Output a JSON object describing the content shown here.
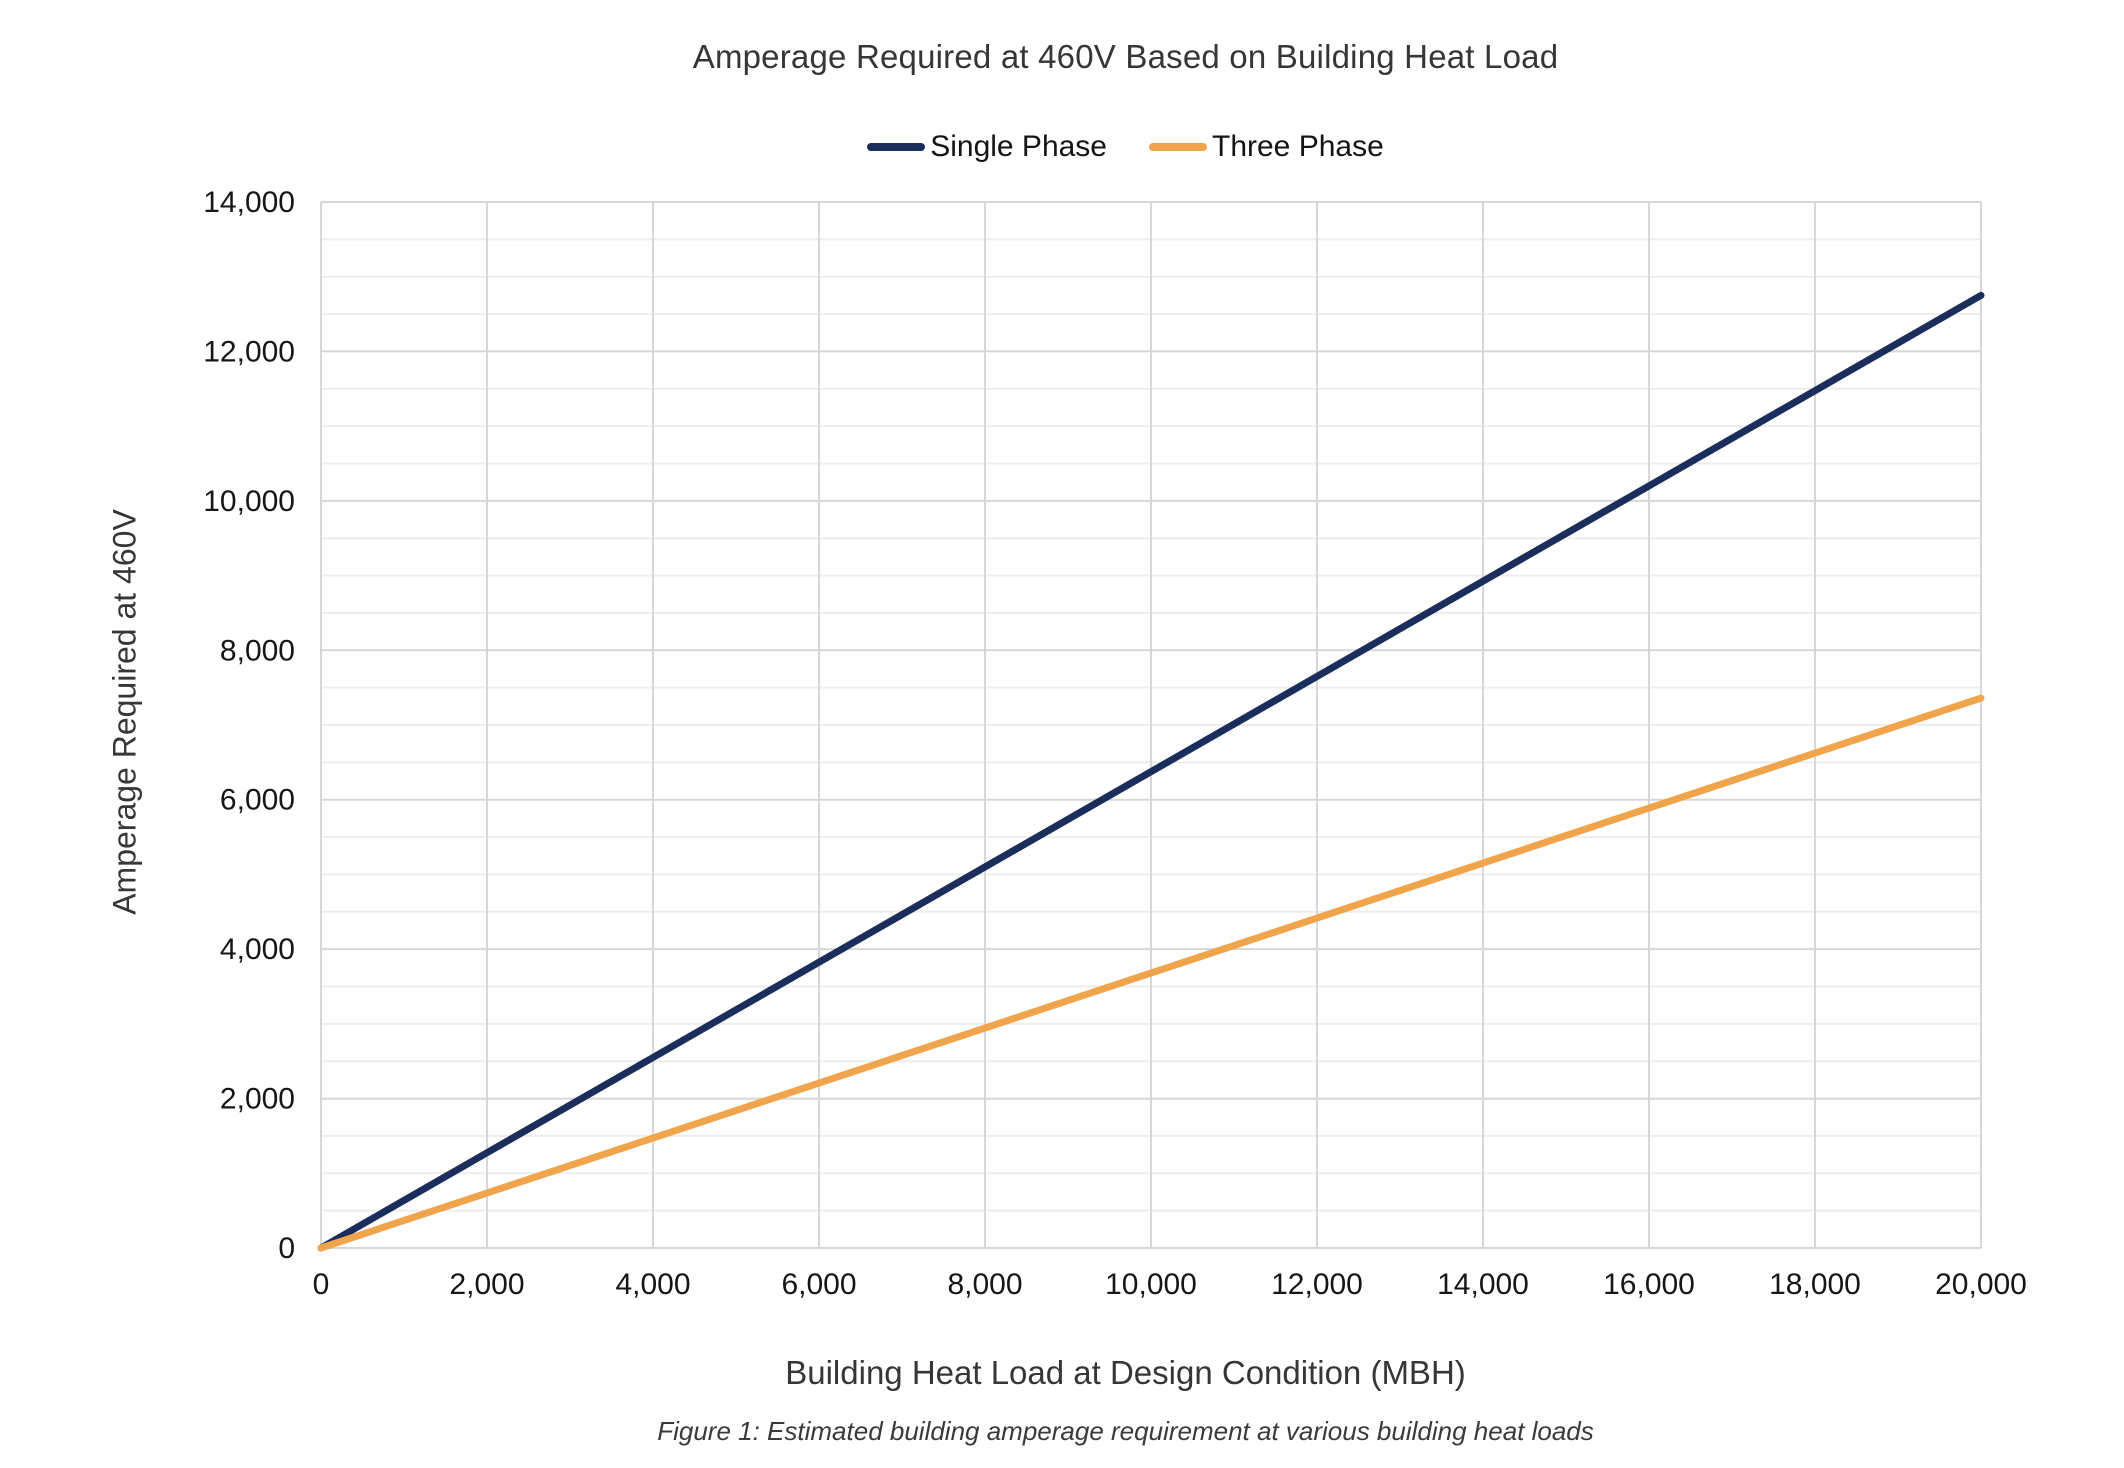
{
  "colors": {
    "background": "#ffffff",
    "grid_major": "#d7d7d7",
    "grid_minor": "#ededed",
    "tick_label": "#161616",
    "heading_text": "#363636",
    "single_phase_line": "#1b2d5b",
    "three_phase_line": "#f0a44c"
  },
  "chart_data": {
    "type": "line",
    "title": "Amperage Required at 460V Based on Building Heat Load",
    "xlabel": "Building Heat Load at Design Condition (MBH)",
    "ylabel": "Amperage Required at 460V",
    "caption": "Figure 1: Estimated building amperage requirement at various building heat loads",
    "grid": true,
    "legend_position": "top-center",
    "xlim": [
      0,
      20000
    ],
    "ylim": [
      0,
      14000
    ],
    "x_major_step": 2000,
    "y_major_step": 2000,
    "y_minor_step": 500,
    "x": [
      0,
      2000,
      4000,
      6000,
      8000,
      10000,
      12000,
      14000,
      16000,
      18000,
      20000
    ],
    "x_tick_labels": [
      "0",
      "2,000",
      "4,000",
      "6,000",
      "8,000",
      "10,000",
      "12,000",
      "14,000",
      "16,000",
      "18,000",
      "20,000"
    ],
    "y_ticks": [
      0,
      2000,
      4000,
      6000,
      8000,
      10000,
      12000,
      14000
    ],
    "y_tick_labels": [
      "0",
      "2,000",
      "4,000",
      "6,000",
      "8,000",
      "10,000",
      "12,000",
      "14,000"
    ],
    "series": [
      {
        "name": "Single Phase",
        "color": "#1b2d5b",
        "values": [
          0,
          1275,
          2550,
          3825,
          5100,
          6375,
          7650,
          8925,
          10200,
          11475,
          12750
        ]
      },
      {
        "name": "Three Phase",
        "color": "#f0a44c",
        "values": [
          0,
          736,
          1472,
          2208,
          2944,
          3680,
          4416,
          5152,
          5888,
          6624,
          7360
        ]
      }
    ]
  }
}
